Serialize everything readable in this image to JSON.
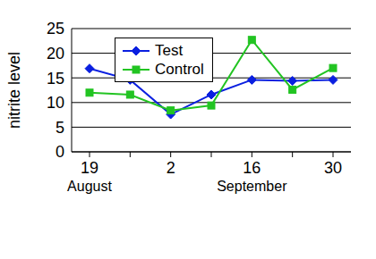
{
  "chart_data": {
    "type": "line",
    "y_label": "nitrite level",
    "categories": [
      "19",
      null,
      "2",
      null,
      "16",
      null,
      "30"
    ],
    "months": [
      "August",
      null,
      null,
      null,
      "September",
      null,
      null
    ],
    "series": [
      {
        "name": "Test",
        "color": "#0a1fe0",
        "marker": "diamond",
        "values": [
          16.9,
          14.6,
          7.6,
          11.6,
          14.6,
          14.4,
          14.6
        ]
      },
      {
        "name": "Control",
        "color": "#22c422",
        "marker": "square",
        "values": [
          12.0,
          11.6,
          8.4,
          9.4,
          22.7,
          12.6,
          17.0
        ]
      }
    ],
    "ylim": [
      0,
      25
    ],
    "yticks": [
      0,
      5,
      10,
      15,
      20,
      25
    ],
    "grid": true,
    "legend": "upper left"
  }
}
